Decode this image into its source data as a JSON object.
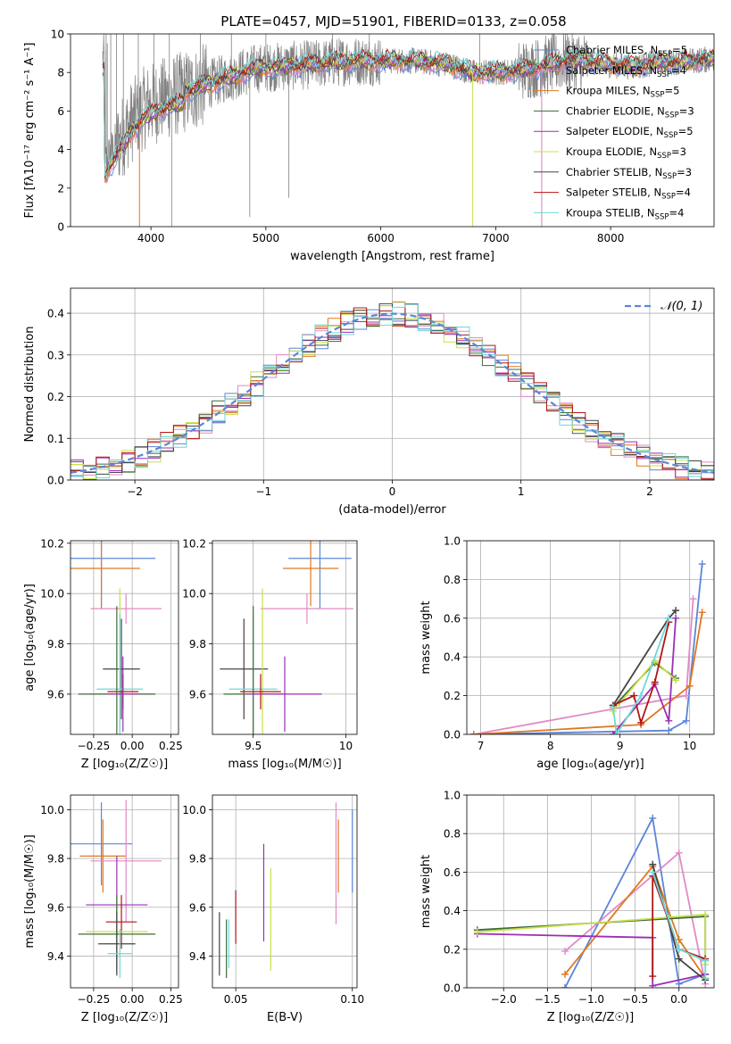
{
  "title": "PLATE=0457, MJD=51901, FIBERID=0133, z=0.058",
  "colors": {
    "Chabrier MILES": "#5b86d8",
    "Salpeter MILES": "#e28ac6",
    "Kroupa MILES": "#e0781e",
    "Chabrier ELODIE": "#3a6b3a",
    "Salpeter ELODIE": "#9b2fb5",
    "Kroupa ELODIE": "#c8e04a",
    "Chabrier STELIB": "#444444",
    "Salpeter STELIB": "#b01515",
    "Kroupa STELIB": "#6ed8d8",
    "data": "#808080",
    "gaussian": "#5b86d8"
  },
  "chart_data": [
    {
      "type": "line",
      "panel": "spectrum",
      "xlabel": "wavelength [Angstrom, rest frame]",
      "ylabel": "Flux [fλ10⁻¹⁷ erg cm⁻² s⁻¹ A⁻¹]",
      "xlim": [
        3300,
        8900
      ],
      "ylim": [
        0,
        10
      ],
      "xticks": [
        4000,
        5000,
        6000,
        7000,
        8000
      ],
      "yticks": [
        0,
        2,
        4,
        6,
        8,
        10
      ],
      "grid": false,
      "legend_position": "top-right",
      "legend": [
        {
          "label": "Chabrier MILES, N",
          "sub": "SSP",
          "suffix": "=5",
          "model": "Chabrier MILES"
        },
        {
          "label": "Salpeter MILES, N",
          "sub": "SSP",
          "suffix": "=4",
          "model": "Salpeter MILES"
        },
        {
          "label": "Kroupa MILES, N",
          "sub": "SSP",
          "suffix": "=5",
          "model": "Kroupa MILES"
        },
        {
          "label": "Chabrier ELODIE, N",
          "sub": "SSP",
          "suffix": "=3",
          "model": "Chabrier ELODIE"
        },
        {
          "label": "Salpeter ELODIE, N",
          "sub": "SSP",
          "suffix": "=5",
          "model": "Salpeter ELODIE"
        },
        {
          "label": "Kroupa ELODIE, N",
          "sub": "SSP",
          "suffix": "=3",
          "model": "Kroupa ELODIE"
        },
        {
          "label": "Chabrier STELIB, N",
          "sub": "SSP",
          "suffix": "=3",
          "model": "Chabrier STELIB"
        },
        {
          "label": "Salpeter STELIB, N",
          "sub": "SSP",
          "suffix": "=4",
          "model": "Salpeter STELIB"
        },
        {
          "label": "Kroupa STELIB, N",
          "sub": "SSP",
          "suffix": "=4",
          "model": "Kroupa STELIB"
        }
      ],
      "continuum": [
        [
          3600,
          3.2
        ],
        [
          3700,
          4.2
        ],
        [
          3850,
          5.6
        ],
        [
          3950,
          6.2
        ],
        [
          4100,
          6.6
        ],
        [
          4300,
          7.0
        ],
        [
          4500,
          7.4
        ],
        [
          4700,
          7.8
        ],
        [
          4900,
          8.2
        ],
        [
          5100,
          8.3
        ],
        [
          5400,
          8.4
        ],
        [
          5700,
          8.6
        ],
        [
          6000,
          8.6
        ],
        [
          6300,
          8.6
        ],
        [
          6600,
          8.4
        ],
        [
          6800,
          8.0
        ],
        [
          7000,
          8.0
        ],
        [
          7200,
          8.1
        ],
        [
          7400,
          8.3
        ],
        [
          7600,
          8.6
        ],
        [
          7800,
          8.6
        ],
        [
          8000,
          8.4
        ],
        [
          8200,
          8.3
        ],
        [
          8400,
          8.5
        ],
        [
          8700,
          8.6
        ],
        [
          8900,
          8.7
        ]
      ],
      "data_lines": [
        [
          3610,
          10
        ],
        [
          3620,
          9.5
        ],
        [
          3650,
          10
        ],
        [
          3700,
          10
        ],
        [
          3760,
          10
        ],
        [
          3890,
          10
        ],
        [
          4025,
          10
        ],
        [
          4160,
          10
        ],
        [
          4180,
          0
        ],
        [
          4430,
          10
        ],
        [
          4700,
          10
        ],
        [
          4860,
          0.5
        ],
        [
          5000,
          10
        ],
        [
          5200,
          1.5
        ],
        [
          5580,
          10
        ],
        [
          5900,
          10
        ],
        [
          6860,
          10
        ],
        [
          7400,
          0
        ]
      ],
      "model_drops": [
        [
          3900,
          0
        ],
        [
          6800,
          0
        ],
        [
          7400,
          0
        ]
      ]
    },
    {
      "type": "histogram",
      "panel": "residuals",
      "xlabel": "(data-model)/error",
      "ylabel": "Normed distribution",
      "xlim": [
        -2.5,
        2.5
      ],
      "ylim": [
        0,
        0.46
      ],
      "xticks": [
        -2,
        -1,
        0,
        1,
        2
      ],
      "yticks": [
        0.0,
        0.1,
        0.2,
        0.3,
        0.4
      ],
      "grid": true,
      "bin_width": 0.1,
      "legend_position": "top-right",
      "legend": [
        {
          "label": "𝒩(0, 1)",
          "model": "gaussian"
        }
      ]
    },
    {
      "type": "scatter",
      "panel": "age-vs-Z",
      "xlabel": "Z [log₁₀(Z/Z☉)]",
      "ylabel": "age  [log₁₀(age/yr)]",
      "xlim": [
        -0.4,
        0.3
      ],
      "ylim": [
        9.44,
        10.21
      ],
      "xticks": [
        -0.25,
        0.0,
        0.25
      ],
      "xtick_labels": [
        "−0.25",
        "0.00",
        "0.25"
      ],
      "yticks": [
        9.6,
        9.8,
        10.0,
        10.2
      ],
      "grid": true,
      "points": [
        {
          "model": "Chabrier MILES",
          "x": -0.2,
          "xerr": 0.35,
          "y": 10.14,
          "yerr": 0.2
        },
        {
          "model": "Kroupa MILES",
          "x": -0.2,
          "xerr": 0.25,
          "y": 10.1,
          "yerr": 0.15
        },
        {
          "model": "Salpeter MILES",
          "x": -0.04,
          "xerr": 0.23,
          "y": 9.94,
          "yerr": 0.06
        },
        {
          "model": "Chabrier STELIB",
          "x": -0.07,
          "xerr": 0.12,
          "y": 9.7,
          "yerr": 0.2
        },
        {
          "model": "Kroupa ELODIE",
          "x": -0.08,
          "xerr": 0.2,
          "y": 9.6,
          "yerr": 0.42
        },
        {
          "model": "Kroupa STELIB",
          "x": -0.08,
          "xerr": 0.15,
          "y": 9.62,
          "yerr": 0.3
        },
        {
          "model": "Salpeter STELIB",
          "x": -0.06,
          "xerr": 0.1,
          "y": 9.61,
          "yerr": 0.07
        },
        {
          "model": "Chabrier ELODIE",
          "x": -0.1,
          "xerr": 0.25,
          "y": 9.6,
          "yerr": 0.35
        },
        {
          "model": "Salpeter ELODIE",
          "x": -0.06,
          "xerr": 0.1,
          "y": 9.6,
          "yerr": 0.15
        }
      ]
    },
    {
      "type": "scatter",
      "panel": "age-vs-mass",
      "xlabel": "mass [log₁₀(M/M☉)]",
      "xlim": [
        9.28,
        10.06
      ],
      "ylim": [
        9.44,
        10.21
      ],
      "xticks": [
        9.5,
        10.0
      ],
      "yticks": [
        9.6,
        9.8,
        10.0,
        10.2
      ],
      "grid": true,
      "points": [
        {
          "model": "Chabrier MILES",
          "x": 9.86,
          "xerr": 0.17,
          "y": 10.14,
          "yerr": 0.2
        },
        {
          "model": "Kroupa MILES",
          "x": 9.81,
          "xerr": 0.15,
          "y": 10.1,
          "yerr": 0.15
        },
        {
          "model": "Salpeter MILES",
          "x": 9.79,
          "xerr": 0.25,
          "y": 9.94,
          "yerr": 0.06
        },
        {
          "model": "Chabrier STELIB",
          "x": 9.45,
          "xerr": 0.13,
          "y": 9.7,
          "yerr": 0.2
        },
        {
          "model": "Kroupa ELODIE",
          "x": 9.55,
          "xerr": 0.14,
          "y": 9.6,
          "yerr": 0.42
        },
        {
          "model": "Kroupa STELIB",
          "x": 9.5,
          "xerr": 0.13,
          "y": 9.62,
          "yerr": 0.3
        },
        {
          "model": "Salpeter STELIB",
          "x": 9.54,
          "xerr": 0.11,
          "y": 9.61,
          "yerr": 0.07
        },
        {
          "model": "Chabrier ELODIE",
          "x": 9.5,
          "xerr": 0.16,
          "y": 9.6,
          "yerr": 0.35
        },
        {
          "model": "Salpeter ELODIE",
          "x": 9.67,
          "xerr": 0.2,
          "y": 9.6,
          "yerr": 0.15
        }
      ]
    },
    {
      "type": "line",
      "panel": "mass-weight-vs-age",
      "xlabel": "age  [log₁₀(age/yr)]",
      "ylabel": "mass weight",
      "xlim": [
        6.8,
        10.35
      ],
      "ylim": [
        0,
        1
      ],
      "xticks": [
        7,
        8,
        9,
        10
      ],
      "yticks": [
        0.0,
        0.2,
        0.4,
        0.6,
        0.8,
        1.0
      ],
      "grid": true,
      "series": [
        {
          "model": "Chabrier MILES",
          "x": [
            6.9,
            9.7,
            9.95,
            10.18
          ],
          "y": [
            0.0,
            0.02,
            0.07,
            0.88
          ]
        },
        {
          "model": "Salpeter MILES",
          "x": [
            6.9,
            9.95,
            10.05
          ],
          "y": [
            0.0,
            0.2,
            0.7
          ]
        },
        {
          "model": "Kroupa MILES",
          "x": [
            6.9,
            9.3,
            10.0,
            10.18
          ],
          "y": [
            0.0,
            0.05,
            0.25,
            0.63
          ]
        },
        {
          "model": "Chabrier ELODIE",
          "x": [
            8.9,
            9.5,
            9.8
          ],
          "y": [
            0.14,
            0.37,
            0.29
          ]
        },
        {
          "model": "Salpeter ELODIE",
          "x": [
            8.9,
            9.5,
            9.7,
            9.8
          ],
          "y": [
            0.0,
            0.26,
            0.07,
            0.6
          ]
        },
        {
          "model": "Kroupa ELODIE",
          "x": [
            8.9,
            9.5,
            9.8
          ],
          "y": [
            0.12,
            0.38,
            0.28
          ]
        },
        {
          "model": "Chabrier STELIB",
          "x": [
            8.9,
            9.7,
            9.8
          ],
          "y": [
            0.15,
            0.6,
            0.64
          ]
        },
        {
          "model": "Salpeter STELIB",
          "x": [
            8.9,
            9.2,
            9.3,
            9.5,
            9.7
          ],
          "y": [
            0.15,
            0.2,
            0.06,
            0.27,
            0.58
          ]
        },
        {
          "model": "Kroupa STELIB",
          "x": [
            8.9,
            8.95,
            9.3,
            9.7
          ],
          "y": [
            0.14,
            0.0,
            0.2,
            0.6
          ]
        }
      ]
    },
    {
      "type": "scatter",
      "panel": "mass-vs-Z",
      "xlabel": "Z [log₁₀(Z/Z☉)]",
      "ylabel": "mass [log₁₀(M/M☉)]",
      "xlim": [
        -0.4,
        0.3
      ],
      "ylim": [
        9.27,
        10.06
      ],
      "xticks": [
        -0.25,
        0.0,
        0.25
      ],
      "xtick_labels": [
        "−0.25",
        "0.00",
        "0.25"
      ],
      "yticks": [
        9.4,
        9.6,
        9.8,
        10.0
      ],
      "grid": true,
      "points": [
        {
          "model": "Chabrier MILES",
          "x": -0.2,
          "xerr": 0.2,
          "y": 9.86,
          "yerr": 0.17
        },
        {
          "model": "Kroupa MILES",
          "x": -0.19,
          "xerr": 0.15,
          "y": 9.81,
          "yerr": 0.15
        },
        {
          "model": "Salpeter MILES",
          "x": -0.04,
          "xerr": 0.23,
          "y": 9.79,
          "yerr": 0.25
        },
        {
          "model": "Salpeter ELODIE",
          "x": -0.1,
          "xerr": 0.2,
          "y": 9.61,
          "yerr": 0.2
        },
        {
          "model": "Salpeter STELIB",
          "x": -0.07,
          "xerr": 0.1,
          "y": 9.54,
          "yerr": 0.11
        },
        {
          "model": "Kroupa ELODIE",
          "x": -0.1,
          "xerr": 0.2,
          "y": 9.5,
          "yerr": 0.14
        },
        {
          "model": "Chabrier ELODIE",
          "x": -0.1,
          "xerr": 0.25,
          "y": 9.49,
          "yerr": 0.16
        },
        {
          "model": "Chabrier STELIB",
          "x": -0.1,
          "xerr": 0.12,
          "y": 9.45,
          "yerr": 0.13
        },
        {
          "model": "Kroupa STELIB",
          "x": -0.08,
          "xerr": 0.08,
          "y": 9.41,
          "yerr": 0.1
        }
      ]
    },
    {
      "type": "scatter",
      "panel": "mass-vs-EBV",
      "xlabel": "E(B-V)",
      "xlim": [
        0.04,
        0.102
      ],
      "ylim": [
        9.27,
        10.06
      ],
      "xticks": [
        0.05,
        0.1
      ],
      "xtick_labels": [
        "0.05",
        "0.10"
      ],
      "yticks": [
        9.4,
        9.6,
        9.8,
        10.0
      ],
      "grid": true,
      "points": [
        {
          "model": "Chabrier STELIB",
          "x": 0.043,
          "y": 9.45,
          "yerr": 0.13
        },
        {
          "model": "Chabrier ELODIE",
          "x": 0.046,
          "y": 9.43,
          "yerr": 0.12
        },
        {
          "model": "Kroupa STELIB",
          "x": 0.047,
          "y": 9.45,
          "yerr": 0.1
        },
        {
          "model": "Salpeter STELIB",
          "x": 0.05,
          "y": 9.56,
          "yerr": 0.11
        },
        {
          "model": "Salpeter ELODIE",
          "x": 0.062,
          "y": 9.66,
          "yerr": 0.2
        },
        {
          "model": "Kroupa ELODIE",
          "x": 0.065,
          "y": 9.55,
          "yerr": 0.21
        },
        {
          "model": "Salpeter MILES",
          "x": 0.093,
          "y": 9.78,
          "yerr": 0.25
        },
        {
          "model": "Kroupa MILES",
          "x": 0.094,
          "y": 9.81,
          "yerr": 0.15
        },
        {
          "model": "Chabrier MILES",
          "x": 0.1,
          "y": 9.83,
          "yerr": 0.17
        }
      ]
    },
    {
      "type": "line",
      "panel": "mass-weight-vs-Z",
      "xlabel": "Z [log₁₀(Z/Z☉)]",
      "ylabel": "mass weight",
      "xlim": [
        -2.42,
        0.4
      ],
      "ylim": [
        0,
        1
      ],
      "xticks": [
        -2.0,
        -1.5,
        -1.0,
        -0.5,
        0.0
      ],
      "xtick_labels": [
        "−2.0",
        "−1.5",
        "−1.0",
        "−0.5",
        "0.0"
      ],
      "yticks": [
        0.0,
        0.2,
        0.4,
        0.6,
        0.8,
        1.0
      ],
      "grid": true,
      "series": [
        {
          "model": "Chabrier MILES",
          "x": [
            -1.3,
            -0.3,
            0.0,
            0.3
          ],
          "y": [
            0.0,
            0.88,
            0.02,
            0.07
          ]
        },
        {
          "model": "Salpeter MILES",
          "x": [
            -1.3,
            0.0,
            0.3
          ],
          "y": [
            0.19,
            0.7,
            0.02
          ]
        },
        {
          "model": "Kroupa MILES",
          "x": [
            -1.3,
            -0.3,
            0.0,
            0.3
          ],
          "y": [
            0.07,
            0.63,
            0.25,
            0.05
          ]
        },
        {
          "model": "Chabrier ELODIE",
          "x": [
            -2.3,
            0.3,
            0.3
          ],
          "y": [
            0.3,
            0.37,
            0.14
          ]
        },
        {
          "model": "Salpeter ELODIE",
          "x": [
            -2.3,
            -0.3,
            -0.3,
            0.3
          ],
          "y": [
            0.28,
            0.26,
            0.01,
            0.07
          ]
        },
        {
          "model": "Kroupa ELODIE",
          "x": [
            -2.3,
            0.3,
            0.3
          ],
          "y": [
            0.29,
            0.38,
            0.12
          ]
        },
        {
          "model": "Chabrier STELIB",
          "x": [
            -0.3,
            0.0,
            0.3
          ],
          "y": [
            0.64,
            0.15,
            0.04
          ]
        },
        {
          "model": "Salpeter STELIB",
          "x": [
            -0.3,
            -0.3,
            0.0,
            0.3
          ],
          "y": [
            0.06,
            0.58,
            0.2,
            0.15
          ]
        },
        {
          "model": "Kroupa STELIB",
          "x": [
            -0.3,
            0.0,
            0.3,
            0.3
          ],
          "y": [
            0.6,
            0.2,
            0.14,
            0.05
          ]
        }
      ]
    }
  ]
}
